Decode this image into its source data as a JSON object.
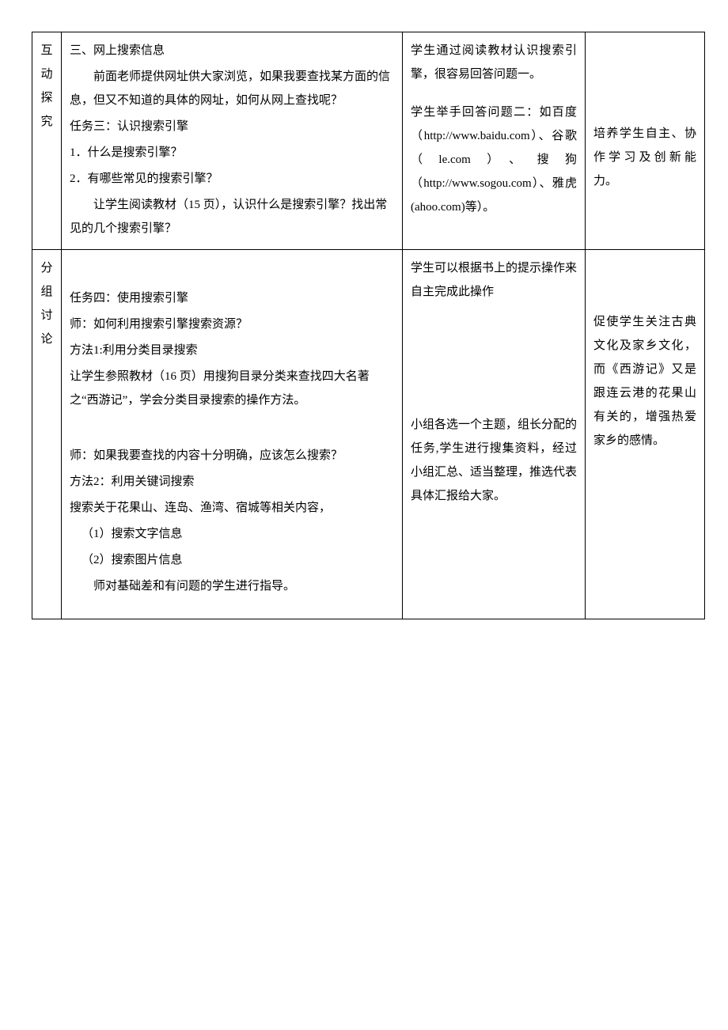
{
  "row1": {
    "phase": "互动探究",
    "teacher": {
      "h1": "三、网上搜索信息",
      "intro": "前面老师提供网址供大家浏览，如果我要查找某方面的信息，但又不知道的具体的网址，如何从网上查找呢？",
      "task3_title": "任务三：认识搜索引擎",
      "q1": "1．什么是搜索引擎？",
      "q2": "2．有哪些常见的搜索引擎？",
      "instr": "让学生阅读教材（15 页），认识什么是搜索引擎？找出常见的几个搜索引擎？"
    },
    "student": {
      "p1": "学生通过阅读教材认识搜索引擎，很容易回答问题一。",
      "p2": "学生举手回答问题二：如百度（http://www.baidu.com）、谷歌（le.com）、搜狗（http://www.sogou.com）、雅虎(ahoo.com)等）。"
    },
    "intent": "培养学生自主、协作学习及创新能力。"
  },
  "row2": {
    "phase": "分组讨论",
    "teacher": {
      "task4_title": "任务四：使用搜索引擎",
      "q": "师：如何利用搜索引擎搜索资源？",
      "m1_title": "方法1:利用分类目录搜索",
      "m1_body": "让学生参照教材（16 页）用搜狗目录分类来查找四大名著之“西游记”，学会分类目录搜索的操作方法。",
      "m2_q": "师：如果我要查找的内容十分明确，应该怎么搜索？",
      "m2_title": "方法2：利用关键词搜索",
      "m2_body": "搜索关于花果山、连岛、渔湾、宿城等相关内容，",
      "m2_s1": "（1）搜索文字信息",
      "m2_s2": "（2）搜索图片信息",
      "m2_note": "师对基础差和有问题的学生进行指导。"
    },
    "student": {
      "p1": "学生可以根据书上的提示操作来自主完成此操作",
      "p2": "小组各选一个主题，组长分配的任务,学生进行搜集资料，经过小组汇总、适当整理，推选代表具体汇报给大家。"
    },
    "intent": "促使学生关注古典文化及家乡文化，而《西游记》又是跟连云港的花果山有关的，增强热爱家乡的感情。"
  }
}
